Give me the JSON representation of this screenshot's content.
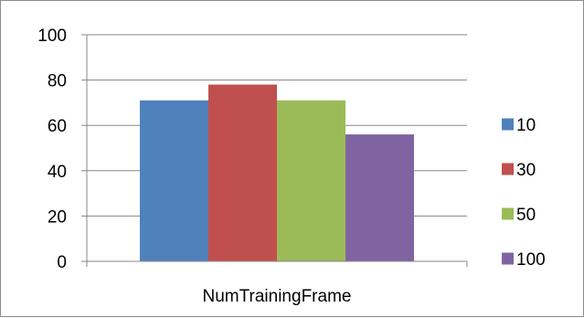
{
  "chart_data": {
    "type": "bar",
    "categories": [
      "NumTrainingFrame"
    ],
    "series": [
      {
        "name": "10",
        "values": [
          71
        ],
        "color": "#4f81bd"
      },
      {
        "name": "30",
        "values": [
          78
        ],
        "color": "#c0504d"
      },
      {
        "name": "50",
        "values": [
          71
        ],
        "color": "#9bbb59"
      },
      {
        "name": "100",
        "values": [
          56
        ],
        "color": "#8064a2"
      }
    ],
    "yticks": [
      "0",
      "20",
      "40",
      "60",
      "80",
      "100"
    ],
    "ylim": [
      0,
      100
    ],
    "grid": true,
    "legend_position": "right"
  }
}
